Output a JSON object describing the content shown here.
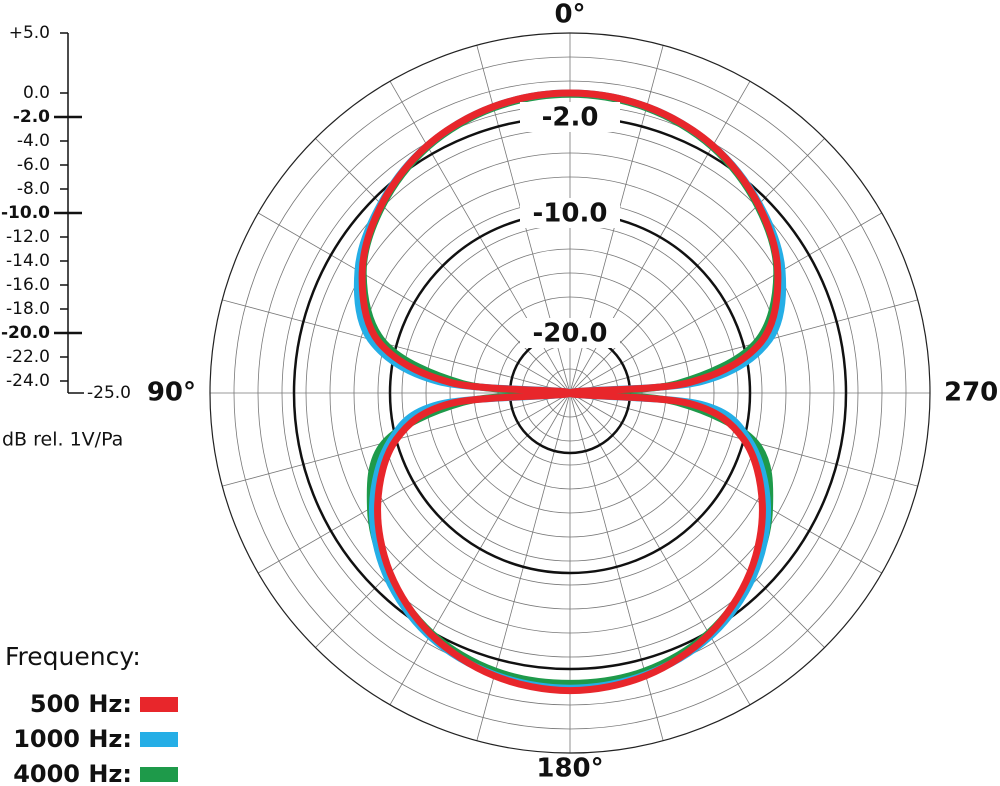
{
  "chart_data": {
    "type": "polar",
    "axis_label": "dB rel. 1V/Pa",
    "legend_title": "Frequency:",
    "rlim": [
      -25,
      5
    ],
    "rticks": [
      {
        "value": 5,
        "label": "+5.0"
      },
      {
        "value": 0,
        "label": "0.0"
      },
      {
        "value": -2,
        "label": "-2.0"
      },
      {
        "value": -4,
        "label": "-4.0"
      },
      {
        "value": -6,
        "label": "-6.0"
      },
      {
        "value": -8,
        "label": "-8.0"
      },
      {
        "value": -10,
        "label": "-10.0"
      },
      {
        "value": -12,
        "label": "-12.0"
      },
      {
        "value": -14,
        "label": "-14.0"
      },
      {
        "value": -16,
        "label": "-16.0"
      },
      {
        "value": -18,
        "label": "-18.0"
      },
      {
        "value": -20,
        "label": "-20.0"
      },
      {
        "value": -22,
        "label": "-22.0"
      },
      {
        "value": -24,
        "label": "-24.0"
      },
      {
        "value": -25,
        "label": "-25.0"
      }
    ],
    "major_rticks": [
      -2,
      -10,
      -20
    ],
    "r_grid_step": 2,
    "theta_grid_step": 15,
    "thetaticks": [
      {
        "value": 0,
        "label": "0°"
      },
      {
        "value": 90,
        "label": "90°"
      },
      {
        "value": 180,
        "label": "180°"
      },
      {
        "value": 270,
        "label": "270°"
      }
    ],
    "angles": [
      0,
      15,
      30,
      45,
      60,
      75,
      85,
      90,
      95,
      105,
      120,
      135,
      150,
      165,
      180,
      195,
      210,
      225,
      240,
      255,
      265,
      270,
      275,
      285,
      300,
      315,
      330,
      345
    ],
    "series": [
      {
        "name": "500 Hz:",
        "color": "#e8262b",
        "values": [
          0,
          -0.3,
          -1.2,
          -2.8,
          -5.0,
          -8.5,
          -15,
          -25,
          -15,
          -10,
          -6.5,
          -3.8,
          -1.8,
          -0.6,
          -0.2,
          -0.6,
          -1.8,
          -3.8,
          -6.5,
          -10,
          -15,
          -25,
          -15,
          -8.5,
          -5.0,
          -2.8,
          -1.2,
          -0.3
        ]
      },
      {
        "name": "1000 Hz:",
        "color": "#25aee6",
        "values": [
          0,
          -0.3,
          -1.2,
          -2.7,
          -4.6,
          -7.8,
          -14,
          -25,
          -14,
          -9.5,
          -6.0,
          -3.4,
          -1.6,
          -0.7,
          -0.4,
          -0.7,
          -1.6,
          -3.4,
          -6.0,
          -9.5,
          -14,
          -25,
          -14,
          -7.8,
          -4.6,
          -2.7,
          -1.2,
          -0.3
        ]
      },
      {
        "name": "4000 Hz:",
        "color": "#1e9a4a",
        "values": [
          -0.1,
          -0.4,
          -1.3,
          -2.9,
          -5.1,
          -9,
          -16,
          -24,
          -16,
          -9,
          -5.8,
          -3.6,
          -1.9,
          -1.0,
          -0.8,
          -1.0,
          -1.9,
          -3.6,
          -5.8,
          -9,
          -16,
          -24,
          -16,
          -9,
          -5.1,
          -2.9,
          -1.3,
          -0.4
        ]
      }
    ]
  }
}
